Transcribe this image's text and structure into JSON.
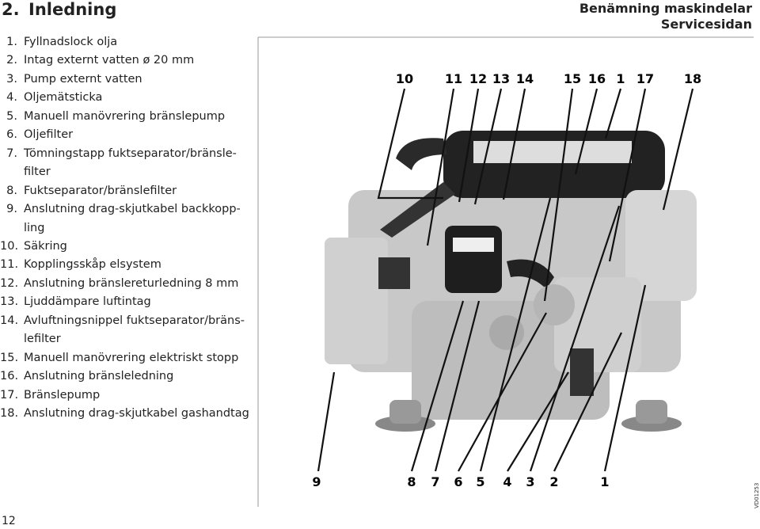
{
  "header": {
    "section_number": "2.",
    "title": "Inledning",
    "right_title": "Benämning maskindelar",
    "right_subtitle": "Servicesidan"
  },
  "items": [
    {
      "number": "1.",
      "lines": [
        "Fyllnadslock olja"
      ]
    },
    {
      "number": "2.",
      "lines": [
        "Intag externt vatten ø 20 mm"
      ]
    },
    {
      "number": "3.",
      "lines": [
        "Pump externt vatten"
      ]
    },
    {
      "number": "4.",
      "lines": [
        "Oljemätsticka"
      ]
    },
    {
      "number": "5.",
      "lines": [
        "Manuell manövrering bränslepump"
      ]
    },
    {
      "number": "6.",
      "lines": [
        "Oljefilter"
      ]
    },
    {
      "number": "7.",
      "lines": [
        "Tömningstapp fuktseparator/bränsle-",
        "filter"
      ]
    },
    {
      "number": "8.",
      "lines": [
        "Fuktseparator/bränslefilter"
      ]
    },
    {
      "number": "9.",
      "lines": [
        "Anslutning drag-skjutkabel backkopp-",
        "ling"
      ]
    },
    {
      "number": "10.",
      "lines": [
        "Säkring"
      ]
    },
    {
      "number": "11.",
      "lines": [
        "Kopplingsskåp elsystem"
      ]
    },
    {
      "number": "12.",
      "lines": [
        "Anslutning bränslereturledning 8 mm"
      ]
    },
    {
      "number": "13.",
      "lines": [
        "Ljuddämpare luftintag"
      ]
    },
    {
      "number": "14.",
      "lines": [
        "Avluftningsnippel fuktseparator/bräns-",
        "lefilter"
      ]
    },
    {
      "number": "15.",
      "lines": [
        "Manuell manövrering elektriskt stopp"
      ]
    },
    {
      "number": "16.",
      "lines": [
        "Anslutning bränsleledning"
      ]
    },
    {
      "number": "17.",
      "lines": [
        "Bränslepump"
      ]
    },
    {
      "number": "18.",
      "lines": [
        "Anslutning drag-skjutkabel gashandtag"
      ]
    }
  ],
  "figure": {
    "top_callouts": [
      "10",
      "11",
      "12",
      "13",
      "14",
      "15",
      "16",
      "1",
      "17",
      "18"
    ],
    "bottom_callouts": [
      "9",
      "8",
      "7",
      "6",
      "5",
      "4",
      "3",
      "2",
      "1"
    ],
    "image_code": "VD01253"
  },
  "footer": {
    "page_number": "12"
  }
}
